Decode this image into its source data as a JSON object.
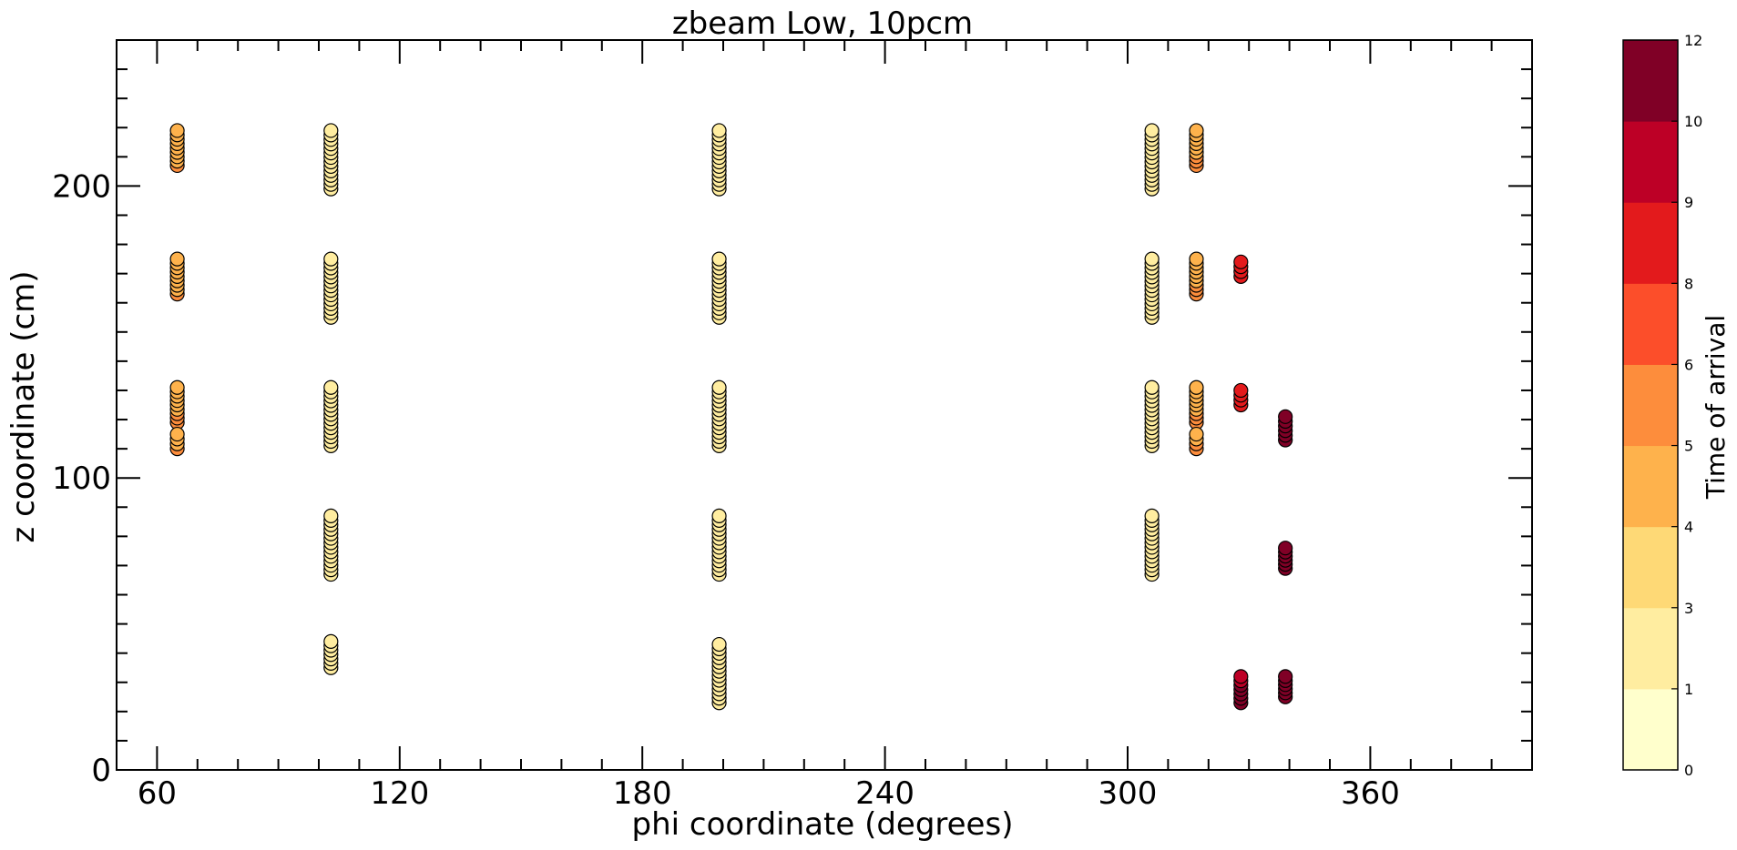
{
  "chart_data": {
    "type": "scatter",
    "title": "zbeam Low, 10pcm",
    "xlabel": "phi coordinate (degrees)",
    "ylabel": "z coordinate (cm)",
    "xlim": [
      50,
      400
    ],
    "ylim": [
      0,
      250
    ],
    "x_ticks": [
      60,
      120,
      180,
      240,
      300,
      360
    ],
    "x_tick_labels": [
      "60",
      "120",
      "180",
      "240",
      "300",
      "360"
    ],
    "y_ticks": [
      0,
      100,
      200
    ],
    "y_tick_labels": [
      "0",
      "100",
      "200"
    ],
    "grid": false,
    "colorbar": {
      "label": "Time of arrival",
      "ticks": [
        "0",
        "1",
        "3",
        "4",
        "5",
        "6",
        "8",
        "9",
        "10",
        "12"
      ],
      "colors": [
        "#ffffcc",
        "#ffeda0",
        "#fed976",
        "#feb24c",
        "#fd8d3c",
        "#fc4e2a",
        "#e31a1c",
        "#bd0026",
        "#800026"
      ]
    },
    "columns": [
      {
        "phi": 65,
        "groups": [
          {
            "z_min": 207,
            "z_max": 219,
            "time_low": 5.0,
            "time_high": 4.5
          },
          {
            "z_min": 163,
            "z_max": 175,
            "time_low": 5.0,
            "time_high": 4.5
          },
          {
            "z_min": 119,
            "z_max": 131,
            "time_low": 5.2,
            "time_high": 4.6
          },
          {
            "z_min": 110,
            "z_max": 115,
            "time_low": 5.0,
            "time_high": 4.6
          }
        ]
      },
      {
        "phi": 103,
        "groups": [
          {
            "z_min": 199,
            "z_max": 219,
            "time_low": 1.0,
            "time_high": 1.0
          },
          {
            "z_min": 155,
            "z_max": 175,
            "time_low": 1.0,
            "time_high": 1.0
          },
          {
            "z_min": 111,
            "z_max": 131,
            "time_low": 1.0,
            "time_high": 1.0
          },
          {
            "z_min": 67,
            "z_max": 87,
            "time_low": 1.0,
            "time_high": 1.0
          },
          {
            "z_min": 35,
            "z_max": 44,
            "time_low": 1.0,
            "time_high": 1.0
          }
        ]
      },
      {
        "phi": 199,
        "groups": [
          {
            "z_min": 199,
            "z_max": 219,
            "time_low": 1.0,
            "time_high": 1.0
          },
          {
            "z_min": 155,
            "z_max": 175,
            "time_low": 1.0,
            "time_high": 1.0
          },
          {
            "z_min": 111,
            "z_max": 131,
            "time_low": 1.0,
            "time_high": 1.0
          },
          {
            "z_min": 67,
            "z_max": 87,
            "time_low": 1.0,
            "time_high": 1.0
          },
          {
            "z_min": 23,
            "z_max": 43,
            "time_low": 1.0,
            "time_high": 1.0
          }
        ]
      },
      {
        "phi": 306,
        "groups": [
          {
            "z_min": 199,
            "z_max": 219,
            "time_low": 2.5,
            "time_high": 1.5
          },
          {
            "z_min": 155,
            "z_max": 175,
            "time_low": 2.5,
            "time_high": 1.5
          },
          {
            "z_min": 111,
            "z_max": 131,
            "time_low": 2.0,
            "time_high": 1.0
          },
          {
            "z_min": 67,
            "z_max": 87,
            "time_low": 1.5,
            "time_high": 1.0
          }
        ]
      },
      {
        "phi": 317,
        "groups": [
          {
            "z_min": 207,
            "z_max": 219,
            "time_low": 5.2,
            "time_high": 4.6
          },
          {
            "z_min": 163,
            "z_max": 175,
            "time_low": 5.2,
            "time_high": 4.6
          },
          {
            "z_min": 119,
            "z_max": 131,
            "time_low": 5.2,
            "time_high": 4.6
          },
          {
            "z_min": 110,
            "z_max": 115,
            "time_low": 5.2,
            "time_high": 4.6
          }
        ]
      },
      {
        "phi": 328,
        "groups": [
          {
            "z_min": 169,
            "z_max": 174,
            "time_low": 8.5,
            "time_high": 8.5
          },
          {
            "z_min": 125,
            "z_max": 130,
            "time_low": 8.5,
            "time_high": 8.5
          },
          {
            "z_min": 23,
            "z_max": 32,
            "time_low": 11.0,
            "time_high": 9.5
          }
        ]
      },
      {
        "phi": 339,
        "groups": [
          {
            "z_min": 113,
            "z_max": 121,
            "time_low": 11.0,
            "time_high": 11.0
          },
          {
            "z_min": 69,
            "z_max": 76,
            "time_low": 11.0,
            "time_high": 11.0
          },
          {
            "z_min": 25,
            "z_max": 32,
            "time_low": 11.0,
            "time_high": 11.0
          }
        ]
      }
    ]
  }
}
